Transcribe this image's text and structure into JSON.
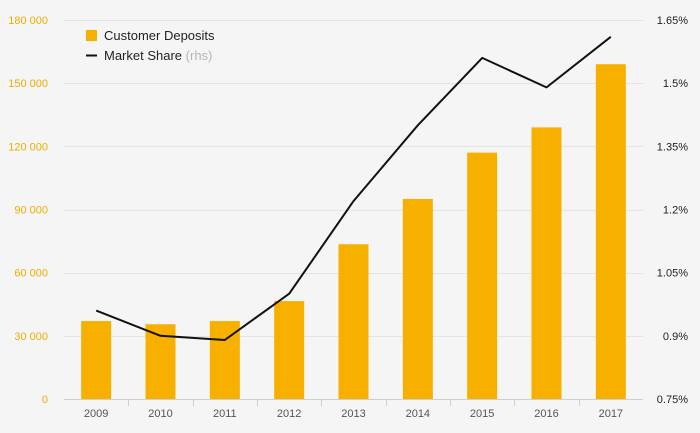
{
  "chart_data": {
    "type": "bar",
    "categories": [
      "2009",
      "2010",
      "2011",
      "2012",
      "2013",
      "2014",
      "2015",
      "2016",
      "2017"
    ],
    "series": [
      {
        "name": "Customer Deposits",
        "type": "bar",
        "axis": "left",
        "color": "#f7b000",
        "values": [
          37000,
          35500,
          37000,
          46500,
          73500,
          95000,
          117000,
          129000,
          159000
        ]
      },
      {
        "name": "Market Share",
        "type": "line",
        "axis": "right",
        "color": "#111111",
        "values": [
          0.96,
          0.9,
          0.89,
          1.0,
          1.22,
          1.4,
          1.56,
          1.49,
          1.61
        ]
      }
    ],
    "legend": {
      "position": "top-left",
      "entries": [
        {
          "label": "Customer Deposits",
          "suffix": ""
        },
        {
          "label": "Market Share",
          "suffix": "(rhs)"
        }
      ]
    },
    "y_left": {
      "ylim": [
        0,
        180000
      ],
      "ticks": [
        0,
        30000,
        60000,
        90000,
        120000,
        150000,
        180000
      ],
      "tick_labels": [
        "0",
        "30 000",
        "60 000",
        "90 000",
        "120 000",
        "150 000",
        "180 000"
      ],
      "color": "#f0ab00"
    },
    "y_right": {
      "ylim": [
        0.75,
        1.65
      ],
      "ticks": [
        0.75,
        0.9,
        1.05,
        1.2,
        1.35,
        1.5,
        1.65
      ],
      "tick_labels": [
        "0.75%",
        "0.9%",
        "1.05%",
        "1.2%",
        "1.35%",
        "1.5%",
        "1.65%"
      ]
    },
    "grid": true
  }
}
